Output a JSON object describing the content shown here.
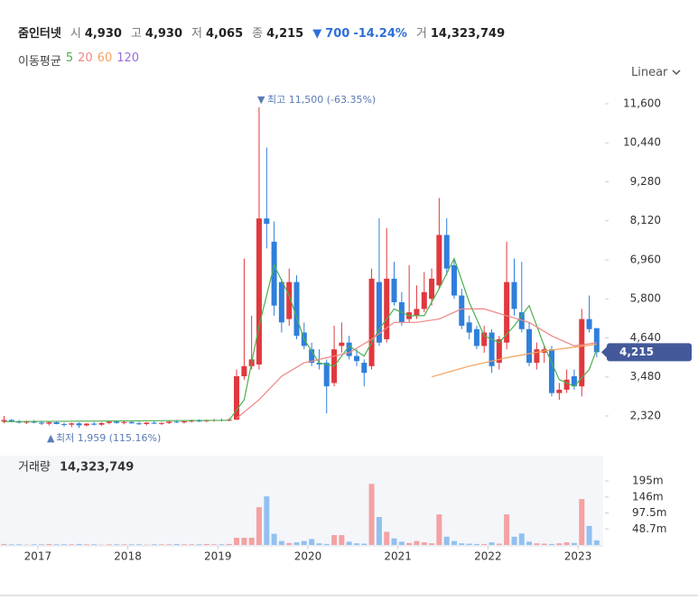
{
  "quote": {
    "name": "줌인터넷",
    "open_label": "시",
    "open": "4,930",
    "high_label": "고",
    "high": "4,930",
    "low_label": "저",
    "low": "4,065",
    "close_label": "종",
    "close": "4,215",
    "change": "700",
    "change_pct": "-14.24%",
    "volume_label": "거",
    "volume": "14,323,749"
  },
  "chart_data": {
    "type": "candlestick",
    "ma_label": "이동평균",
    "scale_label": "Linear",
    "log": false,
    "up_color": "#e0383e",
    "down_color": "#2f7fdc",
    "x": [
      2016.625,
      2016.708,
      2016.792,
      2016.875,
      2016.958,
      2017.042,
      2017.125,
      2017.208,
      2017.292,
      2017.375,
      2017.458,
      2017.542,
      2017.625,
      2017.708,
      2017.792,
      2017.875,
      2017.958,
      2018.042,
      2018.125,
      2018.208,
      2018.292,
      2018.375,
      2018.458,
      2018.542,
      2018.625,
      2018.708,
      2018.792,
      2018.875,
      2018.958,
      2019.042,
      2019.125,
      2019.208,
      2019.292,
      2019.375,
      2019.458,
      2019.542,
      2019.625,
      2019.708,
      2019.792,
      2019.875,
      2019.958,
      2020.042,
      2020.125,
      2020.208,
      2020.292,
      2020.375,
      2020.458,
      2020.542,
      2020.625,
      2020.708,
      2020.792,
      2020.875,
      2020.958,
      2021.042,
      2021.125,
      2021.208,
      2021.292,
      2021.375,
      2021.458,
      2021.542,
      2021.625,
      2021.708,
      2021.792,
      2021.875,
      2021.958,
      2022.042,
      2022.125,
      2022.208,
      2022.292,
      2022.375,
      2022.458,
      2022.542,
      2022.625,
      2022.708,
      2022.792,
      2022.875,
      2022.958,
      2023.042,
      2023.125,
      2023.208
    ],
    "open": [
      2150,
      2200,
      2150,
      2120,
      2160,
      2120,
      2090,
      2130,
      2080,
      2060,
      2100,
      2040,
      2090,
      2060,
      2110,
      2150,
      2110,
      2140,
      2100,
      2080,
      2120,
      2090,
      2110,
      2150,
      2130,
      2160,
      2180,
      2170,
      2190,
      2200,
      2190,
      2210,
      3500,
      3800,
      3850,
      8190,
      7500,
      6300,
      5200,
      6300,
      4800,
      4300,
      3900,
      3900,
      3300,
      4400,
      4500,
      4100,
      3900,
      3800,
      6300,
      4600,
      6400,
      5700,
      5200,
      5300,
      5500,
      5800,
      6200,
      7700,
      6800,
      5900,
      5100,
      4900,
      4400,
      4800,
      3900,
      4500,
      6300,
      5400,
      4900,
      3900,
      4200,
      4300,
      3000,
      3100,
      3500,
      3200,
      5200,
      4930
    ],
    "high": [
      2320,
      2230,
      2200,
      2180,
      2200,
      2180,
      2150,
      2170,
      2120,
      2120,
      2130,
      2110,
      2140,
      2130,
      2180,
      2190,
      2160,
      2190,
      2150,
      2140,
      2170,
      2140,
      2170,
      2200,
      2180,
      2210,
      2220,
      2210,
      2230,
      2240,
      2250,
      3700,
      7000,
      5300,
      11500,
      10300,
      8100,
      6400,
      6700,
      6500,
      5100,
      4500,
      4300,
      4000,
      5000,
      5100,
      4700,
      4300,
      4000,
      6700,
      8200,
      7900,
      6900,
      6000,
      6800,
      6200,
      6600,
      6700,
      8800,
      8200,
      7000,
      6100,
      5300,
      5000,
      5000,
      4900,
      4700,
      7500,
      7000,
      6900,
      5100,
      4500,
      4400,
      4400,
      3300,
      3700,
      3700,
      5500,
      5900,
      4930
    ],
    "low": [
      2100,
      2130,
      2100,
      2080,
      2100,
      2050,
      2040,
      2070,
      2000,
      1990,
      1959,
      2010,
      2040,
      2030,
      2070,
      2090,
      2070,
      2090,
      2050,
      2040,
      2080,
      2050,
      2080,
      2110,
      2090,
      2120,
      2140,
      2130,
      2150,
      2160,
      2160,
      2200,
      3400,
      3700,
      3700,
      7300,
      5300,
      4800,
      5000,
      4600,
      4300,
      3800,
      3700,
      2400,
      3200,
      4200,
      4000,
      3800,
      3200,
      3700,
      4400,
      4500,
      5600,
      5000,
      5100,
      5200,
      5400,
      5600,
      6100,
      6500,
      5800,
      4900,
      4600,
      4300,
      4200,
      3600,
      3700,
      4300,
      5300,
      4800,
      3800,
      3700,
      3900,
      2900,
      2800,
      3000,
      3100,
      2900,
      4800,
      4065
    ],
    "close": [
      2200,
      2150,
      2120,
      2160,
      2120,
      2090,
      2130,
      2080,
      2060,
      2100,
      2040,
      2090,
      2060,
      2110,
      2150,
      2110,
      2140,
      2100,
      2080,
      2120,
      2090,
      2110,
      2150,
      2130,
      2160,
      2180,
      2170,
      2190,
      2200,
      2190,
      2210,
      3500,
      3800,
      4000,
      8190,
      8030,
      5600,
      5100,
      6300,
      4700,
      4400,
      3900,
      3850,
      3200,
      4300,
      4500,
      4100,
      3950,
      3600,
      6400,
      4500,
      6400,
      5700,
      5100,
      5400,
      5500,
      6000,
      6400,
      7700,
      6700,
      5900,
      5000,
      4800,
      4400,
      4800,
      3800,
      4600,
      6300,
      5500,
      4900,
      3900,
      4300,
      4300,
      3000,
      3100,
      3400,
      3200,
      5200,
      4900,
      4215
    ],
    "xlim": [
      2016.58,
      2023.28
    ],
    "xticks": [
      2017,
      2018,
      2019,
      2020,
      2021,
      2022,
      2023
    ],
    "ylim": [
      1408,
      12002
    ],
    "yticks": [
      {
        "value": 2320,
        "label": "2,320"
      },
      {
        "value": 3480,
        "label": "3,480"
      },
      {
        "value": 4640,
        "label": "4,640"
      },
      {
        "value": 5800,
        "label": "5,800"
      },
      {
        "value": 6960,
        "label": "6,960"
      },
      {
        "value": 8120,
        "label": "8,120"
      },
      {
        "value": 9280,
        "label": "9,280"
      },
      {
        "value": 10440,
        "label": "10,440"
      },
      {
        "value": 11600,
        "label": "11,600"
      }
    ],
    "series": [
      {
        "name": "5",
        "color": "#4caf50",
        "x": [
          2016.625,
          2019.125,
          2019.292,
          2019.458,
          2019.625,
          2019.792,
          2019.958,
          2020.125,
          2020.292,
          2020.458,
          2020.625,
          2020.792,
          2020.958,
          2021.125,
          2021.292,
          2021.458,
          2021.625,
          2021.792,
          2021.958,
          2022.125,
          2022.292,
          2022.458,
          2022.625,
          2022.792,
          2022.958,
          2023.125,
          2023.208
        ],
        "values": [
          2150,
          2190,
          2800,
          5000,
          6800,
          5900,
          4600,
          3900,
          3800,
          4400,
          4100,
          4900,
          5500,
          5300,
          5300,
          6100,
          7000,
          5700,
          4700,
          4500,
          5000,
          5600,
          4400,
          3400,
          3200,
          3700,
          4300
        ]
      },
      {
        "name": "20",
        "color": "#ef8585",
        "x": [
          2019.208,
          2019.458,
          2019.708,
          2019.958,
          2020.208,
          2020.458,
          2020.708,
          2020.958,
          2021.208,
          2021.458,
          2021.708,
          2021.958,
          2022.208,
          2022.458,
          2022.708,
          2022.958,
          2023.208
        ],
        "values": [
          2250,
          2800,
          3500,
          3900,
          4050,
          4200,
          4600,
          5100,
          5100,
          5200,
          5500,
          5500,
          5300,
          5100,
          4700,
          4400,
          4500
        ]
      },
      {
        "name": "60",
        "color": "#f2a25f",
        "x": [
          2021.375,
          2021.792,
          2022.208,
          2022.625,
          2023.208
        ],
        "values": [
          3480,
          3800,
          4050,
          4250,
          4450
        ]
      },
      {
        "name": "120",
        "color": "#9b6fe0",
        "x": [],
        "values": []
      }
    ],
    "annotations": [
      {
        "marker": "▼",
        "text": "최고 11,500 (-63.35%)"
      },
      {
        "marker": "▲",
        "text": "최저 1,959 (115.16%)"
      }
    ],
    "last_price": {
      "value": 4215,
      "label": "4,215"
    },
    "volume": {
      "title": "거래량",
      "total": "14,323,749",
      "up_color": "#f4a2a2",
      "down_color": "#92c0f0",
      "values": [
        3,
        2,
        2,
        1,
        2,
        2,
        3,
        2,
        2,
        2,
        3,
        2,
        2,
        1,
        2,
        2,
        2,
        2,
        2,
        1,
        2,
        2,
        2,
        3,
        2,
        2,
        2,
        3,
        2,
        2,
        3,
        22,
        22,
        22,
        115,
        148,
        34,
        12,
        6,
        8,
        12,
        18,
        5,
        3,
        30,
        30,
        10,
        5,
        4,
        186,
        85,
        40,
        20,
        10,
        6,
        12,
        8,
        5,
        93,
        25,
        12,
        5,
        4,
        3,
        3,
        8,
        4,
        93,
        25,
        35,
        10,
        5,
        4,
        3,
        5,
        8,
        6,
        140,
        58,
        14
      ],
      "ylim": [
        0,
        272
      ],
      "yticks": [
        {
          "value": 48.7,
          "label": "48.7m"
        },
        {
          "value": 97.5,
          "label": "97.5m"
        },
        {
          "value": 146,
          "label": "146m"
        },
        {
          "value": 195,
          "label": "195m"
        }
      ]
    }
  }
}
